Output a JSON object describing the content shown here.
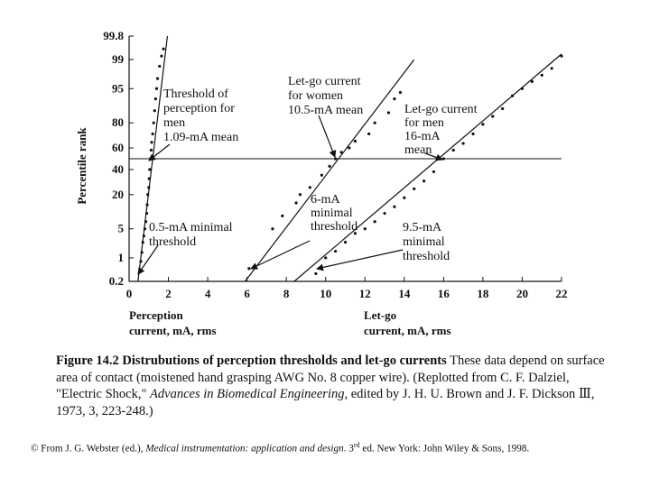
{
  "chart_data": {
    "type": "scatter",
    "x_ticks": [
      "0",
      "2",
      "4",
      "6",
      "8",
      "10",
      "12",
      "14",
      "16",
      "18",
      "20",
      "22"
    ],
    "y_ticks": [
      "99.8",
      "99",
      "95",
      "80",
      "60",
      "40",
      "20",
      "5",
      "1",
      "0.2"
    ],
    "ylabel": "Percentile rank",
    "xlabel_left": [
      "Perception",
      "current, mA, rms"
    ],
    "xlabel_right": [
      "Let-go",
      "current, mA, rms"
    ],
    "reference_line_percentile": 50,
    "series": [
      {
        "name": "Threshold of perception for men",
        "fit": [
          [
            0.45,
            0.2
          ],
          [
            1.95,
            99.8
          ]
        ],
        "points": [
          [
            0.6,
            0.8
          ],
          [
            0.65,
            1.4
          ],
          [
            0.7,
            2.5
          ],
          [
            0.75,
            3.5
          ],
          [
            0.8,
            5
          ],
          [
            0.85,
            7
          ],
          [
            0.9,
            10
          ],
          [
            0.92,
            14
          ],
          [
            0.95,
            20
          ],
          [
            1.0,
            25
          ],
          [
            1.02,
            32
          ],
          [
            1.05,
            40
          ],
          [
            1.09,
            50
          ],
          [
            1.12,
            58
          ],
          [
            1.15,
            65
          ],
          [
            1.2,
            72
          ],
          [
            1.25,
            80
          ],
          [
            1.3,
            87
          ],
          [
            1.35,
            92
          ],
          [
            1.4,
            95
          ],
          [
            1.45,
            97
          ],
          [
            1.55,
            98.5
          ],
          [
            1.65,
            99.2
          ],
          [
            1.75,
            99.5
          ]
        ]
      },
      {
        "name": "Let-go current for women",
        "fit": [
          [
            5.9,
            0.2
          ],
          [
            14.5,
            99
          ]
        ],
        "points": [
          [
            6.1,
            0.5
          ],
          [
            7.3,
            5
          ],
          [
            7.8,
            9
          ],
          [
            8.5,
            15
          ],
          [
            8.7,
            20
          ],
          [
            9.2,
            25
          ],
          [
            9.8,
            35
          ],
          [
            10.2,
            43
          ],
          [
            10.5,
            50
          ],
          [
            10.8,
            56
          ],
          [
            11.2,
            60
          ],
          [
            11.5,
            66
          ],
          [
            12.2,
            72
          ],
          [
            12.5,
            80
          ],
          [
            13.2,
            86
          ],
          [
            13.5,
            92
          ],
          [
            13.8,
            94
          ]
        ]
      },
      {
        "name": "Let-go current for men",
        "fit": [
          [
            8.4,
            0.2
          ],
          [
            22.0,
            99.3
          ]
        ],
        "points": [
          [
            9.5,
            0.35
          ],
          [
            10.0,
            1.0
          ],
          [
            10.5,
            1.5
          ],
          [
            11.0,
            2.5
          ],
          [
            11.5,
            4
          ],
          [
            12.0,
            5
          ],
          [
            12.5,
            7
          ],
          [
            13.0,
            10
          ],
          [
            13.5,
            13
          ],
          [
            14.0,
            18
          ],
          [
            14.5,
            24
          ],
          [
            15.0,
            30
          ],
          [
            15.5,
            38
          ],
          [
            16.0,
            50
          ],
          [
            16.5,
            58
          ],
          [
            17.0,
            64
          ],
          [
            17.5,
            72
          ],
          [
            18.0,
            79
          ],
          [
            18.5,
            84
          ],
          [
            19.0,
            88
          ],
          [
            19.5,
            93
          ],
          [
            20.0,
            95
          ],
          [
            20.5,
            96.5
          ],
          [
            21.0,
            97.5
          ],
          [
            21.5,
            98.3
          ],
          [
            22.0,
            99.2
          ]
        ]
      }
    ],
    "annotations": {
      "perception": [
        "Threshold of",
        "perception for",
        "men",
        "1.09-mA mean"
      ],
      "perception_min": [
        "0.5-mA  minimal",
        "threshold"
      ],
      "women": [
        "Let-go current",
        "for women",
        "10.5-mA mean"
      ],
      "women_min": [
        "6-mA",
        "minimal",
        "threshold"
      ],
      "men": [
        "Let-go current",
        "for men",
        "16-mA",
        "mean"
      ],
      "men_min": [
        "9.5-mA",
        "minimal",
        "threshold"
      ]
    }
  },
  "caption": {
    "bold": "Figure 14.2 Distrubutions of perception thresholds and let-go currents",
    "text1": " These data depend on surface area of contact (moistened hand grasping AWG No. 8 copper wire). (Replotted from C. F. Dalziel, \"Electric Shock,\" ",
    "italic": "Advances in Biomedical Engineering",
    "text2": ", edited by J. H. U. Brown and J. F. Dickson Ⅲ, 1973, 3, 223-248.)"
  },
  "credit": {
    "prefix": "© From J. G. Webster (ed.), ",
    "italic": "Medical instrumentation: application and design",
    "mid": ". 3",
    "sup": "rd",
    "suffix": " ed. New York: John Wiley & Sons, 1998."
  }
}
